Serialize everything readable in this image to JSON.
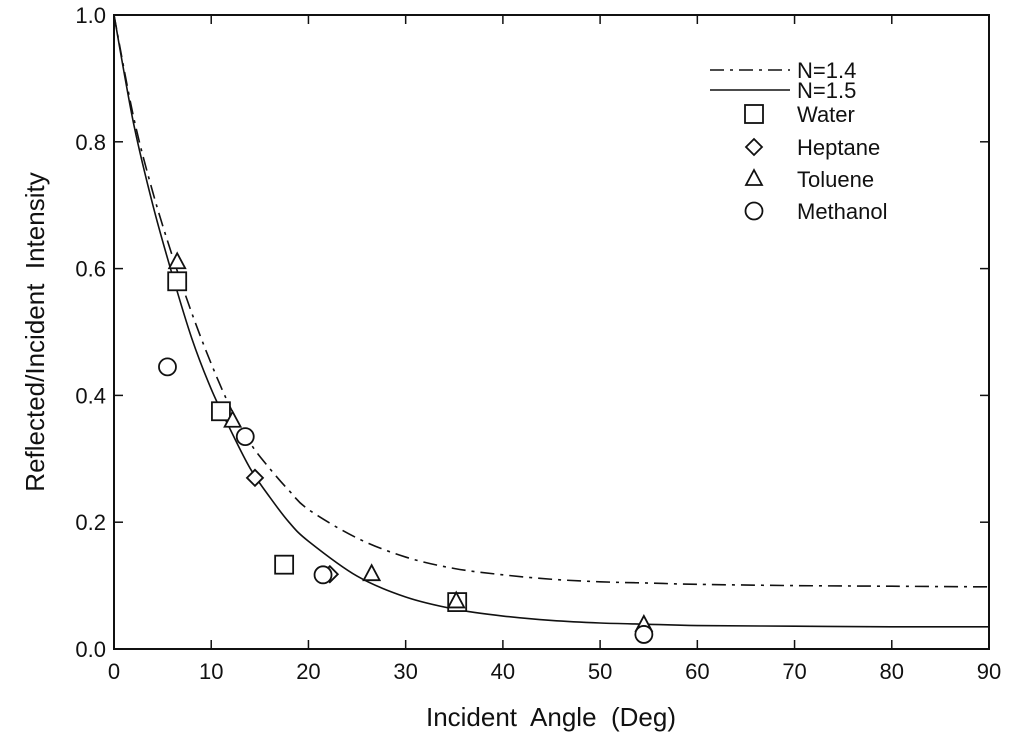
{
  "chart_data": {
    "type": "scatter",
    "title": "",
    "xlabel": "Incident  Angle  (Deg)",
    "ylabel": "Reflected/Incident  Intensity",
    "xlim": [
      0,
      90
    ],
    "ylim": [
      0,
      1.0
    ],
    "xticks": [
      0,
      10,
      20,
      30,
      40,
      50,
      60,
      70,
      80,
      90
    ],
    "yticks": [
      0.0,
      0.2,
      0.4,
      0.6,
      0.8,
      1.0
    ],
    "xtick_labels": [
      "0",
      "10",
      "20",
      "30",
      "40",
      "50",
      "60",
      "70",
      "80",
      "90"
    ],
    "ytick_labels": [
      "0.0",
      "0.2",
      "0.4",
      "0.6",
      "0.8",
      "1.0"
    ],
    "grid": false,
    "legend_position": "top-right",
    "curves": [
      {
        "name": "N=1.4",
        "style": "dash-dot",
        "x": [
          0,
          2,
          4,
          6,
          8,
          10,
          12,
          14,
          16,
          18,
          20,
          25,
          30,
          35,
          40,
          45,
          50,
          55,
          60,
          70,
          80,
          90
        ],
        "y": [
          1.0,
          0.84,
          0.72,
          0.62,
          0.53,
          0.45,
          0.38,
          0.325,
          0.285,
          0.25,
          0.22,
          0.175,
          0.145,
          0.127,
          0.117,
          0.11,
          0.106,
          0.104,
          0.102,
          0.1,
          0.099,
          0.098
        ]
      },
      {
        "name": "N=1.5",
        "style": "solid",
        "x": [
          0,
          2,
          4,
          6,
          8,
          10,
          12,
          14,
          16,
          18,
          20,
          25,
          30,
          35,
          40,
          45,
          50,
          55,
          60,
          70,
          80,
          90
        ],
        "y": [
          1.0,
          0.83,
          0.7,
          0.59,
          0.49,
          0.41,
          0.345,
          0.285,
          0.24,
          0.2,
          0.17,
          0.115,
          0.082,
          0.063,
          0.052,
          0.045,
          0.041,
          0.039,
          0.037,
          0.036,
          0.035,
          0.035
        ]
      }
    ],
    "series": [
      {
        "name": "Water",
        "marker": "square",
        "x": [
          6.5,
          11,
          17.5,
          35.3
        ],
        "y": [
          0.58,
          0.375,
          0.133,
          0.074
        ]
      },
      {
        "name": "Heptane",
        "marker": "diamond",
        "x": [
          14.5,
          22.2
        ],
        "y": [
          0.27,
          0.118
        ]
      },
      {
        "name": "Toluene",
        "marker": "triangle",
        "x": [
          6.5,
          12.2,
          26.5,
          35.2,
          54.5
        ],
        "y": [
          0.61,
          0.36,
          0.118,
          0.075,
          0.038
        ]
      },
      {
        "name": "Methanol",
        "marker": "circle",
        "x": [
          5.5,
          13.5,
          21.5,
          54.5
        ],
        "y": [
          0.445,
          0.335,
          0.117,
          0.023
        ]
      }
    ]
  }
}
